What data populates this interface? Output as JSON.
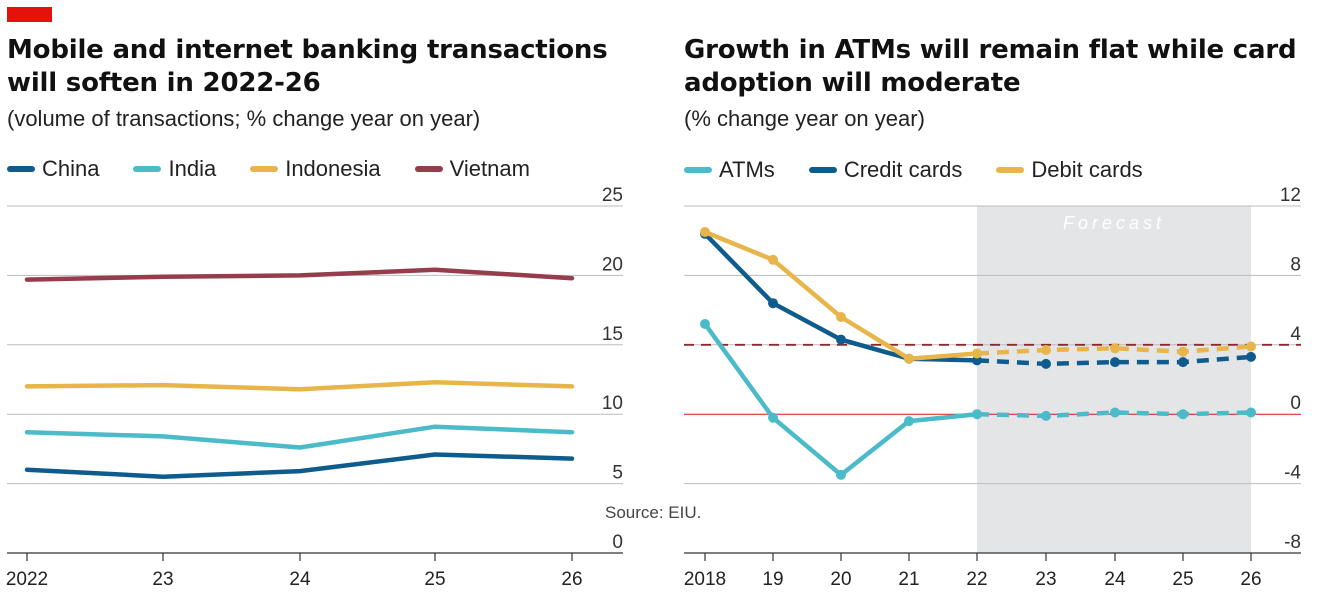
{
  "colors": {
    "brand_red": "#e3120b",
    "china": "#0e5c8d",
    "india": "#4bbac9",
    "indonesia": "#e8b54b",
    "vietnam": "#963d4c",
    "atms": "#4bbac9",
    "credit_cards": "#0e5c8d",
    "debit_cards": "#e8b54b",
    "forecast_shade": "#e4e5e7",
    "reference_line": "#8b2a2a"
  },
  "source": "Source: EIU.",
  "chart_data": [
    {
      "type": "line",
      "title": "Mobile and internet banking transactions will soften in 2022-26",
      "subtitle": "(volume of transactions; % change year on year)",
      "x": [
        "2022",
        "23",
        "24",
        "25",
        "26"
      ],
      "ylim": [
        0,
        25
      ],
      "yticks": [
        "25",
        "20",
        "15",
        "10",
        "5",
        "0"
      ],
      "legend": "top",
      "grid": true,
      "series": [
        {
          "name": "China",
          "values": [
            6.0,
            5.5,
            5.9,
            7.1,
            6.8
          ]
        },
        {
          "name": "India",
          "values": [
            8.7,
            8.4,
            7.6,
            9.1,
            8.7
          ]
        },
        {
          "name": "Indonesia",
          "values": [
            12.0,
            12.1,
            11.8,
            12.3,
            12.0
          ]
        },
        {
          "name": "Vietnam",
          "values": [
            19.7,
            19.9,
            20.0,
            20.4,
            19.8
          ]
        }
      ]
    },
    {
      "type": "line",
      "title": "Growth in ATMs will remain flat while card adoption will moderate",
      "subtitle": "(% change year on year)",
      "x": [
        "2018",
        "19",
        "20",
        "21",
        "22",
        "23",
        "24",
        "25",
        "26"
      ],
      "ylim": [
        -8,
        12
      ],
      "yticks": [
        "12",
        "8",
        "4",
        "0",
        "-4",
        "-8"
      ],
      "forecast_label": "Forecast",
      "forecast_from": "22",
      "reference_line": 4,
      "legend": "top",
      "grid": true,
      "series": [
        {
          "name": "ATMs",
          "values": [
            5.2,
            -0.2,
            -3.5,
            -0.4,
            0.0,
            -0.1,
            0.1,
            0.0,
            0.1
          ]
        },
        {
          "name": "Credit cards",
          "values": [
            10.4,
            6.4,
            4.3,
            3.2,
            3.1,
            2.9,
            3.0,
            3.0,
            3.3
          ]
        },
        {
          "name": "Debit cards",
          "values": [
            10.5,
            8.9,
            5.6,
            3.2,
            3.5,
            3.7,
            3.8,
            3.6,
            3.9
          ]
        }
      ]
    }
  ]
}
